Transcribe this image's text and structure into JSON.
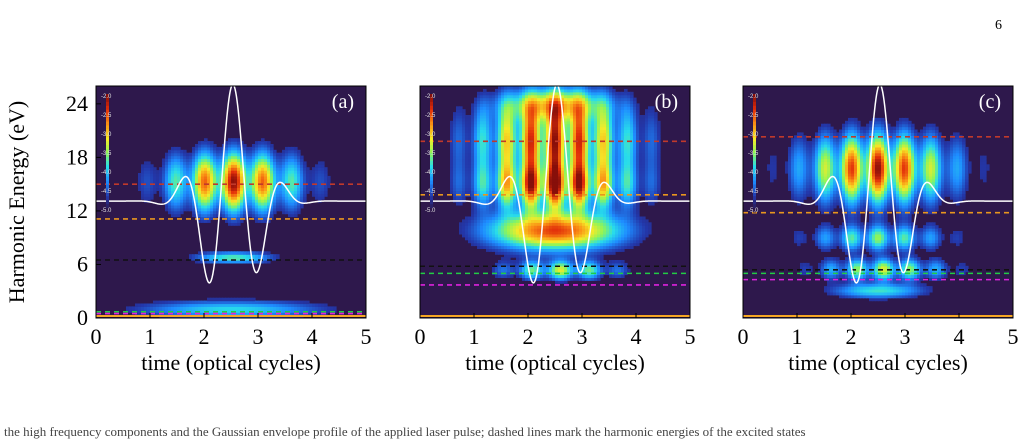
{
  "page": {
    "number": "6"
  },
  "caption_fragment": "the high frequency components and the Gaussian envelope profile of the applied laser pulse; dashed lines mark the harmonic energies of the excited states",
  "colorbar": {
    "tick_labels": [
      "-2.0",
      "-2.5",
      "-3.0",
      "-3.5",
      "-4.0",
      "-4.5",
      "-5.0"
    ]
  },
  "chart_data": [
    {
      "type": "heatmap",
      "panel_label": "(a)",
      "ylabel": "Harmonic Energy (eV)",
      "xlabel": "time (optical cycles)",
      "xlim": [
        0,
        5
      ],
      "ylim": [
        0,
        26
      ],
      "x_ticks": [
        "0",
        "1",
        "2",
        "3",
        "4",
        "5"
      ],
      "y_ticks": [
        "0",
        "6",
        "12",
        "18",
        "24"
      ],
      "grid": false,
      "dashed_levels": [
        {
          "y": 15.0,
          "color": "#c0392b"
        },
        {
          "y": 11.1,
          "color": "#e8961e"
        },
        {
          "y": 6.5,
          "color": "#111111"
        },
        {
          "y": 0.7,
          "color": "#22cc44"
        },
        {
          "y": 0.5,
          "color": "#dd22dd"
        }
      ],
      "blobs": [
        {
          "cx": 2.55,
          "cy": 15.3,
          "sx": 0.85,
          "sy": 2.3,
          "level": 1.0,
          "fringe": 9
        },
        {
          "cx": 2.55,
          "cy": 6.8,
          "sx": 0.5,
          "sy": 0.45,
          "level": 0.45
        },
        {
          "cx": 2.5,
          "cy": 1.0,
          "sx": 1.2,
          "sy": 0.7,
          "level": 0.38
        }
      ],
      "laser_field": {
        "t0": 2.5,
        "sigma": 0.7,
        "period": 0.95,
        "baseline": 13.1,
        "amplitude": 13.1
      }
    },
    {
      "type": "heatmap",
      "panel_label": "(b)",
      "xlabel": "time (optical cycles)",
      "xlim": [
        0,
        5
      ],
      "ylim": [
        0,
        26
      ],
      "x_ticks": [
        "0",
        "1",
        "2",
        "3",
        "4",
        "5"
      ],
      "grid": false,
      "dashed_levels": [
        {
          "y": 19.8,
          "color": "#c0392b"
        },
        {
          "y": 13.8,
          "color": "#e8961e"
        },
        {
          "y": 5.8,
          "color": "#111111"
        },
        {
          "y": 5.0,
          "color": "#22cc44"
        },
        {
          "y": 3.7,
          "color": "#dd22dd"
        }
      ],
      "blobs": [
        {
          "cx": 2.5,
          "cy": 20.0,
          "sx": 1.0,
          "sy": 2.9,
          "level": 1.0,
          "fringe": 11
        },
        {
          "cx": 2.5,
          "cy": 14.8,
          "sx": 0.95,
          "sy": 1.8,
          "level": 0.95,
          "fringe": 11
        },
        {
          "cx": 2.5,
          "cy": 9.8,
          "sx": 0.85,
          "sy": 1.5,
          "level": 0.85
        },
        {
          "cx": 2.6,
          "cy": 5.4,
          "sx": 0.75,
          "sy": 0.75,
          "level": 0.6,
          "fringe": 9
        },
        {
          "cx": 2.5,
          "cy": 24.0,
          "sx": 0.65,
          "sy": 1.3,
          "level": 0.55
        }
      ],
      "laser_field": {
        "t0": 2.5,
        "sigma": 0.7,
        "period": 0.95,
        "baseline": 13.1,
        "amplitude": 13.1
      }
    },
    {
      "type": "heatmap",
      "panel_label": "(c)",
      "xlabel": "time (optical cycles)",
      "xlim": [
        0,
        5
      ],
      "ylim": [
        0,
        26
      ],
      "x_ticks": [
        "0",
        "1",
        "2",
        "3",
        "4",
        "5"
      ],
      "grid": false,
      "dashed_levels": [
        {
          "y": 20.3,
          "color": "#c0392b"
        },
        {
          "y": 11.8,
          "color": "#e8961e"
        },
        {
          "y": 5.4,
          "color": "#111111"
        },
        {
          "y": 5.0,
          "color": "#22cc44"
        },
        {
          "y": 4.3,
          "color": "#dd22dd"
        }
      ],
      "blobs": [
        {
          "cx": 2.5,
          "cy": 16.8,
          "sx": 0.95,
          "sy": 2.7,
          "level": 1.0,
          "fringe": 10
        },
        {
          "cx": 2.5,
          "cy": 9.0,
          "sx": 0.9,
          "sy": 1.0,
          "level": 0.5,
          "fringe": 10
        },
        {
          "cx": 2.6,
          "cy": 5.5,
          "sx": 0.85,
          "sy": 0.85,
          "level": 0.6,
          "fringe": 10
        },
        {
          "cx": 2.5,
          "cy": 3.1,
          "sx": 0.6,
          "sy": 0.6,
          "level": 0.4
        }
      ],
      "laser_field": {
        "t0": 2.5,
        "sigma": 0.7,
        "period": 0.95,
        "baseline": 13.1,
        "amplitude": 13.1
      }
    }
  ]
}
